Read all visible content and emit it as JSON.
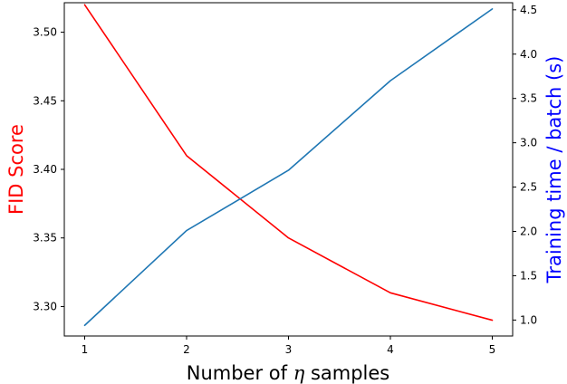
{
  "chart_data": {
    "type": "line",
    "title": "",
    "x": [
      1,
      2,
      3,
      4,
      5
    ],
    "xlabel": {
      "prefix": "Number of ",
      "symbol": "η",
      "suffix": " samples"
    },
    "xticks": [
      "1",
      "2",
      "3",
      "4",
      "5"
    ],
    "xlim": [
      0.8,
      5.2
    ],
    "y_left": {
      "label": "FID Score",
      "color": "#ff0000",
      "lim": [
        3.2785,
        3.5215
      ],
      "ticks": [
        "3.30",
        "3.35",
        "3.40",
        "3.45",
        "3.50"
      ],
      "tick_values": [
        3.3,
        3.35,
        3.4,
        3.45,
        3.5
      ]
    },
    "y_right": {
      "label": "Training time / batch (s)",
      "color": "#0000ff",
      "lim": [
        0.82,
        4.58
      ],
      "ticks": [
        "1.0",
        "1.5",
        "2.0",
        "2.5",
        "3.0",
        "3.5",
        "4.0",
        "4.5"
      ],
      "tick_values": [
        1.0,
        1.5,
        2.0,
        2.5,
        3.0,
        3.5,
        4.0,
        4.5
      ]
    },
    "series": [
      {
        "axis": "left",
        "color": "#ff0000",
        "values": [
          3.52,
          3.41,
          3.35,
          3.31,
          3.29
        ]
      },
      {
        "axis": "right",
        "color": "#1f77b4",
        "values": [
          0.94,
          2.01,
          2.69,
          3.7,
          4.51
        ]
      }
    ]
  }
}
